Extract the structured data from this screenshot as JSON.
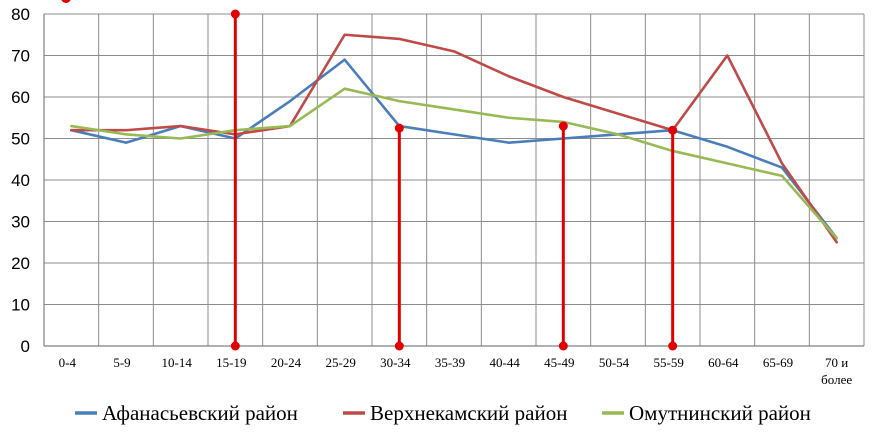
{
  "chart_data": {
    "type": "line",
    "title": "",
    "xlabel": "",
    "ylabel": "",
    "ylim": [
      0,
      80
    ],
    "yticks": [
      "0",
      "10",
      "20",
      "30",
      "40",
      "50",
      "60",
      "70",
      "80"
    ],
    "categories": [
      "0-4",
      "5-9",
      "10-14",
      "15-19",
      "20-24",
      "25-29",
      "30-34",
      "35-39",
      "40-44",
      "45-49",
      "50-54",
      "55-59",
      "60-64",
      "65-69",
      "70 и более"
    ],
    "grid": true,
    "legend_position": "bottom",
    "series": [
      {
        "name": "Афанасьевский  район",
        "color": "#4a7ebb",
        "values": [
          52,
          49,
          53,
          50,
          59,
          69,
          53,
          51,
          49,
          50,
          51,
          52,
          48,
          43,
          26
        ]
      },
      {
        "name": "Верхнекамский  район",
        "color": "#be4b48",
        "values": [
          52,
          52,
          53,
          51,
          53,
          75,
          74,
          71,
          65,
          60,
          56,
          52,
          70,
          44,
          25
        ]
      },
      {
        "name": "Омутнинский  район",
        "color": "#98b954",
        "values": [
          53,
          51,
          50,
          52,
          53,
          62,
          59,
          57,
          55,
          54,
          51,
          47,
          44,
          41,
          26
        ]
      }
    ],
    "annotations": {
      "type": "vertical-markers",
      "color": "#e00000",
      "markers": [
        {
          "x": 3.5,
          "from": 0,
          "to": 80
        },
        {
          "x": 6.5,
          "from": 0,
          "to": 52.5
        },
        {
          "x": 9.5,
          "from": 0,
          "to": 53
        },
        {
          "x": 11.5,
          "from": 0,
          "to": 52
        }
      ]
    }
  }
}
